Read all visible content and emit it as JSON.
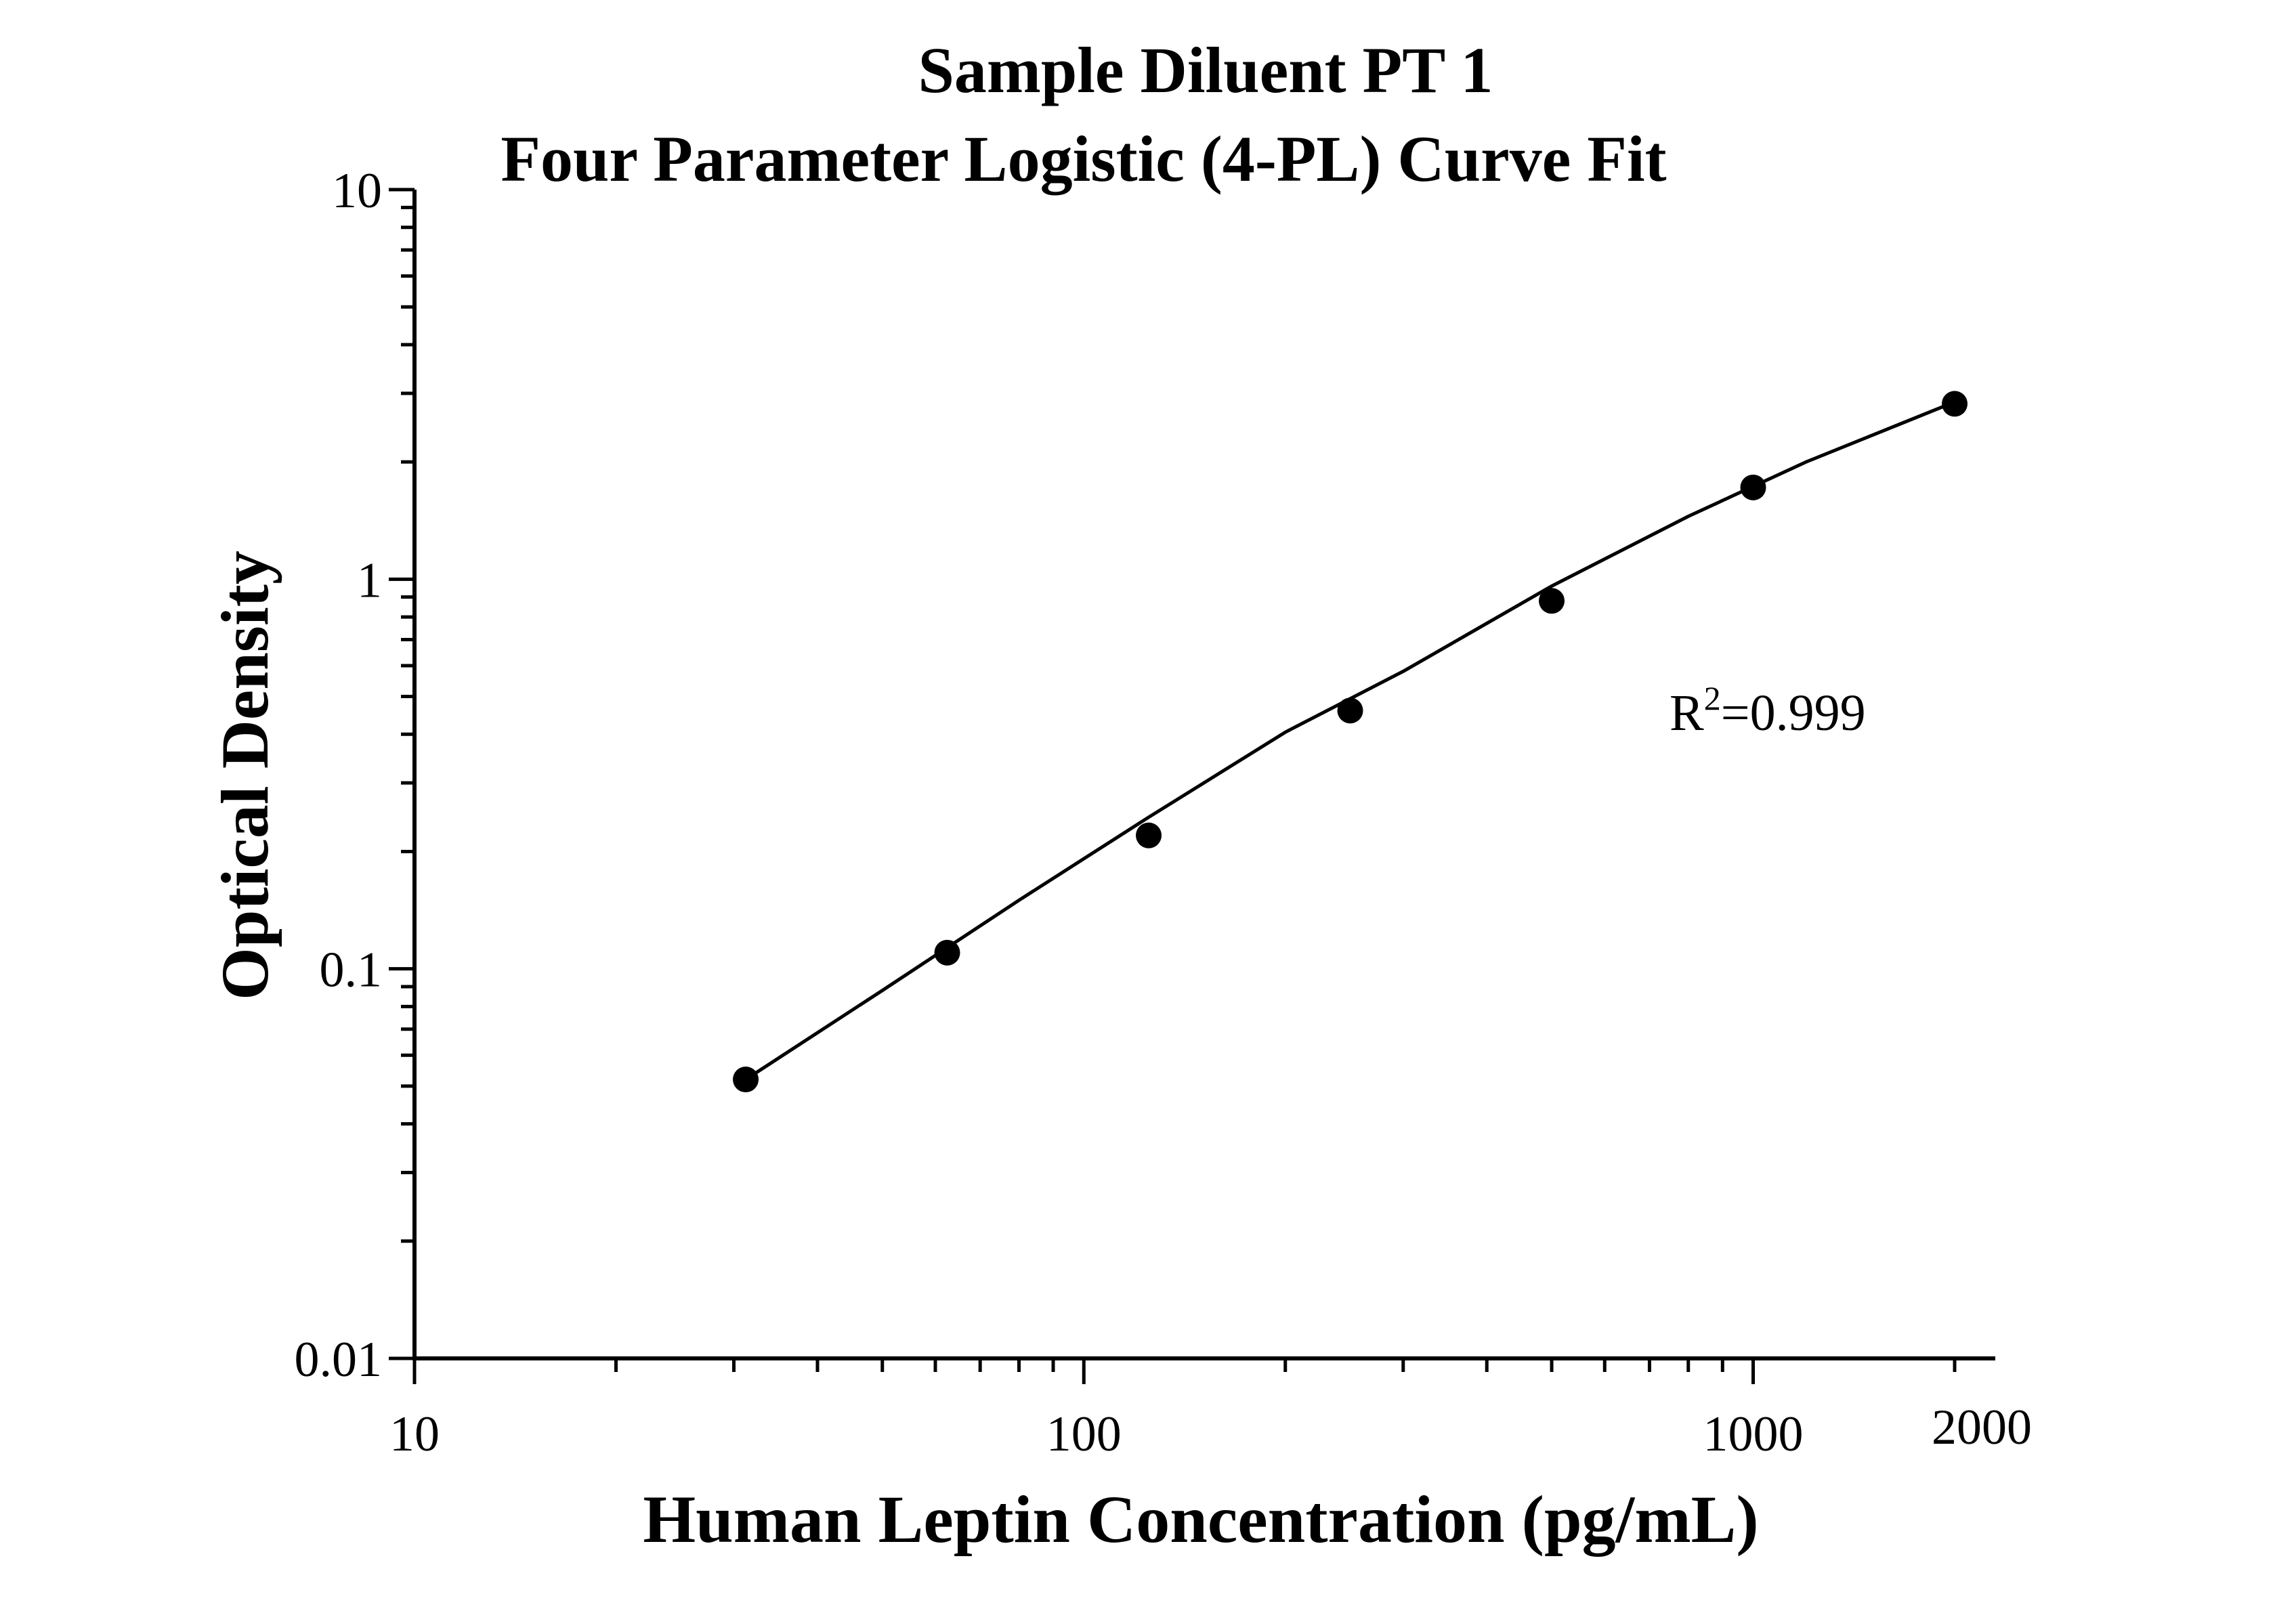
{
  "chart_data": {
    "type": "scatter",
    "title": "Sample Diluent PT 1",
    "subtitle": "Four Parameter Logistic (4-PL) Curve Fit",
    "xlabel": "Human Leptin Concentration (pg/mL)",
    "ylabel": "Optical Density",
    "x_scale": "log",
    "y_scale": "log",
    "xlim": [
      10,
      2300
    ],
    "ylim": [
      0.01,
      10
    ],
    "x_ticks": [
      {
        "value": 10,
        "label": "10"
      },
      {
        "value": 100,
        "label": "100"
      },
      {
        "value": 1000,
        "label": "1000"
      },
      {
        "value": 2000,
        "label": "2000"
      }
    ],
    "y_ticks": [
      {
        "value": 0.01,
        "label": "0.01"
      },
      {
        "value": 0.1,
        "label": "0.1"
      },
      {
        "value": 1,
        "label": "1"
      },
      {
        "value": 10,
        "label": "10"
      }
    ],
    "grid": false,
    "legend": "none",
    "annotation": {
      "base": "R",
      "sup": "2",
      "rest": "=0.999"
    },
    "series": [
      {
        "x": [
          31.25,
          62.5,
          125,
          250,
          500,
          1000,
          2000
        ],
        "y": [
          0.052,
          0.11,
          0.22,
          0.46,
          0.88,
          1.72,
          2.82
        ],
        "marker": "circle",
        "color": "#000000"
      }
    ],
    "fit_curve": {
      "x": [
        31.25,
        50,
        80,
        125,
        200,
        300,
        500,
        800,
        1200,
        2000
      ],
      "y": [
        0.052,
        0.088,
        0.15,
        0.245,
        0.405,
        0.58,
        0.96,
        1.45,
        2.0,
        2.85
      ],
      "color": "#000000"
    }
  }
}
